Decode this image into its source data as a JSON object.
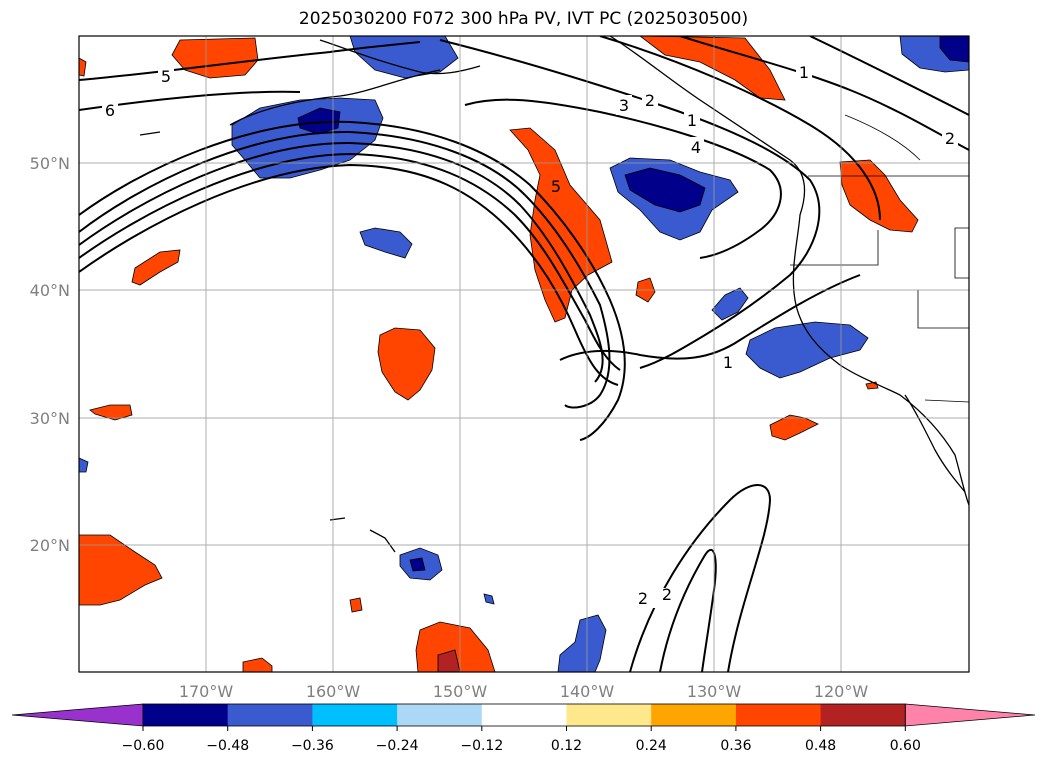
{
  "title": "2025030200 F072 300 hPa PV, IVT PC (2025030500)",
  "lat_labels": [
    "50°N",
    "40°N",
    "30°N",
    "20°N"
  ],
  "lon_labels": [
    "170°W",
    "160°W",
    "150°W",
    "140°W",
    "130°W",
    "120°W"
  ],
  "colorbar": {
    "colors": [
      "#9932cc",
      "#00008b",
      "#3a5bd0",
      "#00bfff",
      "#add8f5",
      "#ffffff",
      "#ffe88c",
      "#ffa500",
      "#ff4500",
      "#b22222",
      "#ff82ab"
    ],
    "ticks": [
      "−0.60",
      "−0.48",
      "−0.36",
      "−0.24",
      "−0.12",
      "0.12",
      "0.24",
      "0.36",
      "0.48",
      "0.60"
    ]
  },
  "contour_labels": [
    "5",
    "6",
    "3",
    "2",
    "1",
    "4",
    "5",
    "2",
    "1",
    "1",
    "2"
  ]
}
